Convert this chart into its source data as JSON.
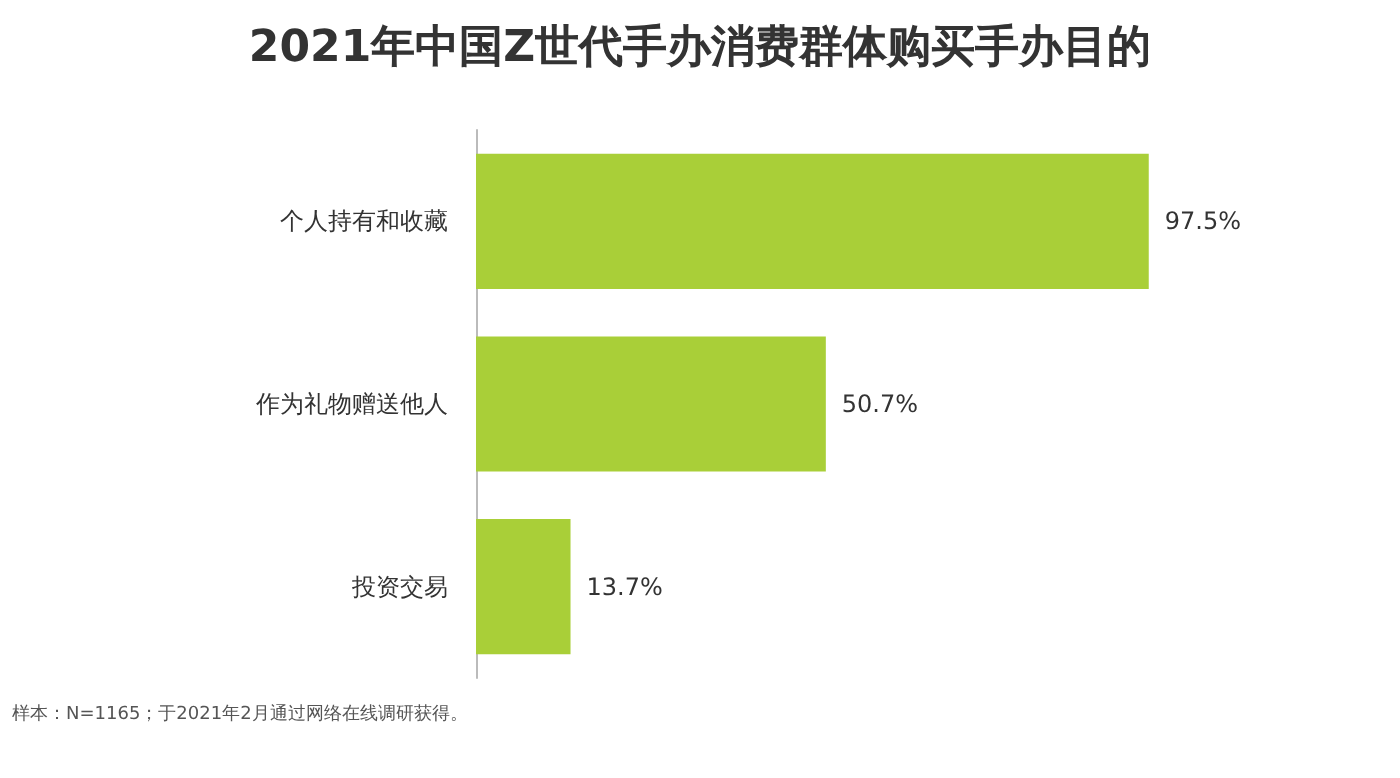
{
  "chart_data": {
    "type": "bar",
    "orientation": "horizontal",
    "title": "2021年中国Z世代手办消费群体购买手办目的",
    "categories": [
      "个人持有和收藏",
      "作为礼物赠送他人",
      "投资交易"
    ],
    "values": [
      97.5,
      50.7,
      13.7
    ],
    "color": "#a9cf38",
    "value_labels": [
      "97.5%",
      "50.7%",
      "13.7%"
    ],
    "annotations": [
      "样本：N=1165；于2021年2月通过网络在线调研获得。"
    ]
  }
}
